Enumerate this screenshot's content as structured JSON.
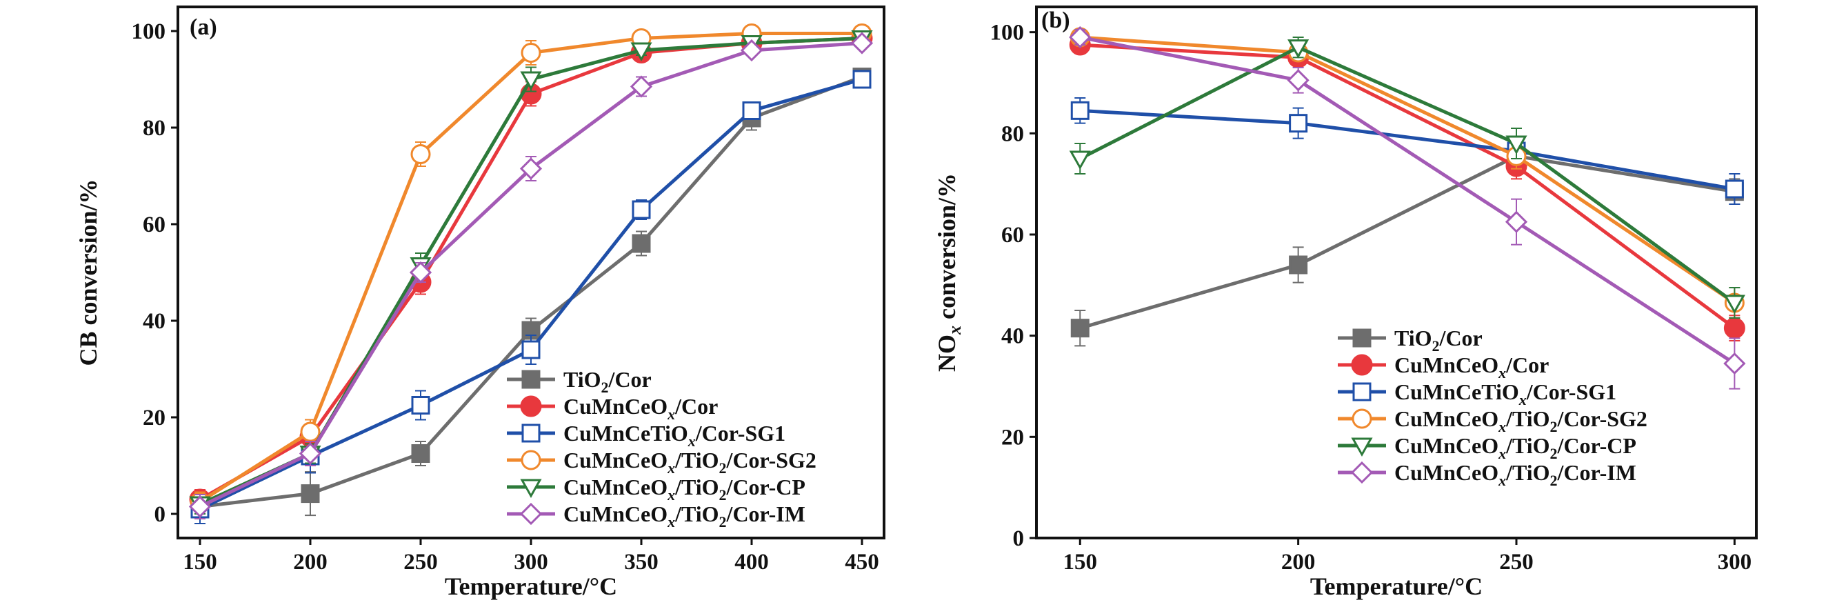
{
  "chart_data": [
    {
      "type": "line",
      "panel_label": "(a)",
      "xlabel": "Temperature/°C",
      "ylabel": "CB conversion/%",
      "x": [
        150,
        200,
        250,
        300,
        350,
        400,
        450
      ],
      "xlim": [
        140,
        460
      ],
      "ylim": [
        -5,
        105
      ],
      "xticks": [
        150,
        200,
        250,
        300,
        350,
        400,
        450
      ],
      "yticks": [
        0,
        20,
        40,
        60,
        80,
        100
      ],
      "grid": false,
      "legend_position": "bottom-right",
      "series": [
        {
          "key": "TiO2",
          "pre": "TiO",
          "sub": "2",
          "post": "/Cor",
          "color": "#6d6d6d",
          "marker": "square-filled",
          "values": [
            1.5,
            4.2,
            12.5,
            38,
            56,
            82,
            90.5
          ],
          "err": [
            2.5,
            4.5,
            2.5,
            2.5,
            2.5,
            2.5,
            1.5
          ]
        },
        {
          "key": "CuMnCeOx",
          "pre": "CuMnCeO",
          "sub": "x",
          "post": "/Cor",
          "color": "#e8383d",
          "marker": "circle-filled",
          "values": [
            3,
            16,
            48,
            87,
            95.5,
            97.5,
            98.5
          ],
          "err": [
            2,
            2,
            2.5,
            2.5,
            1.5,
            1,
            1
          ]
        },
        {
          "key": "CuMnCeTiOx",
          "pre": "CuMnCeTiO",
          "sub": "x",
          "post": "/Cor-SG1",
          "color": "#1f4fa8",
          "marker": "square-open",
          "values": [
            1,
            12,
            22.5,
            34,
            63,
            83.5,
            90
          ],
          "err": [
            3,
            3.5,
            3,
            3,
            2,
            1.5,
            1.5
          ]
        },
        {
          "key": "SG2",
          "pre": "CuMnCeO",
          "sub": "x",
          "post": "/TiO",
          "sub2": "2",
          "post2": "/Cor-SG2",
          "color": "#f0882c",
          "marker": "circle-open",
          "values": [
            2.5,
            17,
            74.5,
            95.5,
            98.5,
            99.5,
            99.5
          ],
          "err": [
            2,
            2.5,
            2.5,
            2.5,
            1,
            0.5,
            0.5
          ]
        },
        {
          "key": "CP",
          "pre": "CuMnCeO",
          "sub": "x",
          "post": "/TiO",
          "sub2": "2",
          "post2": "/Cor-CP",
          "color": "#2d7a3a",
          "marker": "triangle-open",
          "values": [
            2,
            12.5,
            51.5,
            90,
            96,
            97.5,
            98.5
          ],
          "err": [
            2,
            2,
            2.5,
            2.5,
            1,
            1,
            1
          ]
        },
        {
          "key": "IM",
          "pre": "CuMnCeO",
          "sub": "x",
          "post": "/TiO",
          "sub2": "2",
          "post2": "/Cor-IM",
          "color": "#a35ab5",
          "marker": "diamond-open",
          "values": [
            1.5,
            12.5,
            50,
            71.5,
            88.5,
            96,
            97.5
          ],
          "err": [
            2.5,
            2.5,
            2,
            2.5,
            2,
            1,
            1
          ]
        }
      ]
    },
    {
      "type": "line",
      "panel_label": "(b)",
      "xlabel": "Temperature/°C",
      "ylabel_pre": "NO",
      "ylabel_sub": "x",
      "ylabel_post": " conversion/%",
      "x": [
        150,
        200,
        250,
        300
      ],
      "xlim": [
        140,
        305
      ],
      "ylim": [
        0,
        105
      ],
      "xticks": [
        150,
        200,
        250,
        300
      ],
      "yticks": [
        0,
        20,
        40,
        60,
        80,
        100
      ],
      "grid": false,
      "legend_position": "bottom-center",
      "series": [
        {
          "key": "TiO2",
          "pre": "TiO",
          "sub": "2",
          "post": "/Cor",
          "color": "#6d6d6d",
          "marker": "square-filled",
          "values": [
            41.5,
            54,
            75.5,
            68.5
          ],
          "err": [
            3.5,
            3.5,
            2.5,
            2.5
          ]
        },
        {
          "key": "CuMnCeOx",
          "pre": "CuMnCeO",
          "sub": "x",
          "post": "/Cor",
          "color": "#e8383d",
          "marker": "circle-filled",
          "values": [
            97.5,
            95,
            73.5,
            41.5
          ],
          "err": [
            1.5,
            1.5,
            2.5,
            2.5
          ]
        },
        {
          "key": "CuMnCeTiOx",
          "pre": "CuMnCeTiO",
          "sub": "x",
          "post": "/Cor-SG1",
          "color": "#1f4fa8",
          "marker": "square-open",
          "values": [
            84.5,
            82,
            76.5,
            69
          ],
          "err": [
            2.5,
            3,
            2.5,
            3
          ]
        },
        {
          "key": "SG2",
          "pre": "CuMnCeO",
          "sub": "x",
          "post": "/TiO",
          "sub2": "2",
          "post2": "/Cor-SG2",
          "color": "#f0882c",
          "marker": "circle-open",
          "values": [
            99,
            96,
            75.5,
            46.5
          ],
          "err": [
            1,
            1.5,
            2.5,
            3
          ]
        },
        {
          "key": "CP",
          "pre": "CuMnCeO",
          "sub": "x",
          "post": "/TiO",
          "sub2": "2",
          "post2": "/Cor-CP",
          "color": "#2d7a3a",
          "marker": "triangle-open",
          "values": [
            75,
            97,
            78,
            46.5
          ],
          "err": [
            3,
            2,
            3,
            3
          ]
        },
        {
          "key": "IM",
          "pre": "CuMnCeO",
          "sub": "x",
          "post": "/TiO",
          "sub2": "2",
          "post2": "/Cor-IM",
          "color": "#a35ab5",
          "marker": "diamond-open",
          "values": [
            99,
            90.5,
            62.5,
            34.5
          ],
          "err": [
            1.5,
            2.5,
            4.5,
            5
          ]
        }
      ]
    }
  ]
}
